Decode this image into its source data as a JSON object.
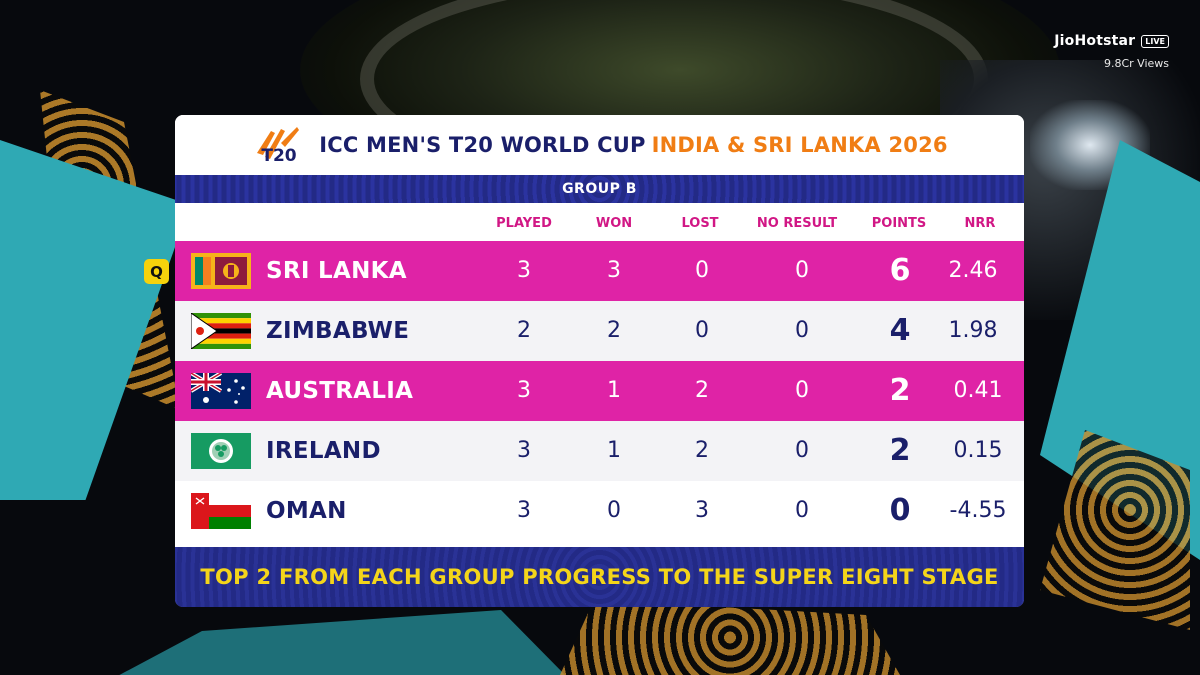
{
  "broadcaster": {
    "brand": "JioHotstar",
    "live": "LIVE",
    "views": "9.8Cr Views"
  },
  "header": {
    "logo_text": "T20",
    "title": "ICC MEN'S T20 WORLD CUP",
    "host": "INDIA & SRI LANKA 2026"
  },
  "group": {
    "label": "GROUP B"
  },
  "columns": [
    "PLAYED",
    "WON",
    "LOST",
    "NO RESULT",
    "POINTS",
    "NRR"
  ],
  "qualified_badge": "Q",
  "rows": [
    {
      "team": "SRI LANKA",
      "flag": "sri-lanka-flag-icon",
      "played": "3",
      "won": "3",
      "lost": "0",
      "no_result": "0",
      "points": "6",
      "nrr": "2.46",
      "qualified": true
    },
    {
      "team": "ZIMBABWE",
      "flag": "zimbabwe-flag-icon",
      "played": "2",
      "won": "2",
      "lost": "0",
      "no_result": "0",
      "points": "4",
      "nrr": "1.98",
      "qualified": false
    },
    {
      "team": "AUSTRALIA",
      "flag": "australia-flag-icon",
      "played": "3",
      "won": "1",
      "lost": "2",
      "no_result": "0",
      "points": "2",
      "nrr": "0.41",
      "qualified": false
    },
    {
      "team": "IRELAND",
      "flag": "ireland-cricket-flag-icon",
      "played": "3",
      "won": "1",
      "lost": "2",
      "no_result": "0",
      "points": "2",
      "nrr": "0.15",
      "qualified": false
    },
    {
      "team": "OMAN",
      "flag": "oman-flag-icon",
      "played": "3",
      "won": "0",
      "lost": "3",
      "no_result": "0",
      "points": "0",
      "nrr": "-4.55",
      "qualified": false
    }
  ],
  "footer": {
    "text": "TOP 2 FROM EACH GROUP PROGRESS TO THE SUPER EIGHT STAGE"
  },
  "colors": {
    "navy": "#1a1f6a",
    "pink": "#df23a6",
    "orange": "#f07d14",
    "yellow": "#f4d51a",
    "teal": "#2fa9b4"
  }
}
